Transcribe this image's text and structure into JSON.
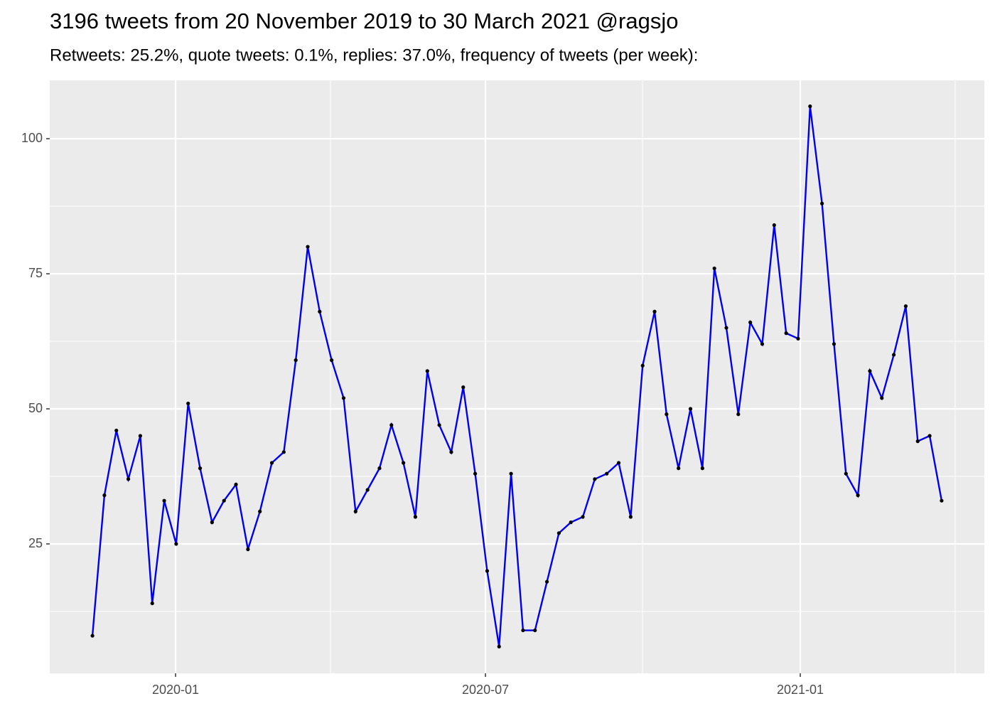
{
  "chart_data": {
    "type": "line",
    "title": "3196 tweets from 20 November 2019 to 30 March 2021 @ragsjo",
    "subtitle": "Retweets: 25.2%, quote tweets: 0.1%, replies: 37.0%, frequency of tweets (per week):",
    "categories": [
      null,
      null,
      null,
      null,
      null,
      null,
      null,
      null,
      null,
      null,
      null,
      null,
      null,
      null,
      null,
      null,
      null,
      null,
      null,
      null,
      null,
      null,
      null,
      null,
      null,
      null,
      null,
      null,
      null,
      null,
      null,
      null,
      null,
      null,
      null,
      null,
      null,
      null,
      null,
      null,
      null,
      null,
      null,
      null,
      null,
      null,
      null,
      null,
      null,
      null,
      null,
      null,
      null,
      null,
      null,
      null,
      null,
      null,
      null,
      null,
      null,
      null,
      null,
      null,
      null,
      null,
      null,
      null,
      null,
      null,
      null,
      null
    ],
    "series": [
      {
        "color": "#0000ee",
        "point_color": "#000000",
        "values": [
          8,
          34,
          46,
          37,
          45,
          14,
          33,
          25,
          51,
          39,
          29,
          33,
          36,
          24,
          31,
          40,
          42,
          59,
          80,
          68,
          59,
          52,
          31,
          35,
          39,
          47,
          40,
          30,
          57,
          47,
          42,
          54,
          38,
          20,
          6,
          38,
          9,
          9,
          18,
          27,
          29,
          30,
          37,
          38,
          40,
          30,
          58,
          68,
          49,
          39,
          50,
          39,
          76,
          65,
          49,
          66,
          62,
          84,
          64,
          63,
          106,
          88,
          62,
          38,
          34,
          57,
          52,
          60,
          69,
          44,
          45,
          33
        ]
      }
    ],
    "xlim": [
      -3.57,
      74.57
    ],
    "xticks": [
      {
        "value": 6.95,
        "label": "2020-01"
      },
      {
        "value": 32.86,
        "label": "2020-07"
      },
      {
        "value": 59.18,
        "label": "2021-01"
      }
    ],
    "x_minor_grid": [
      19.9,
      45.99,
      72.13
    ],
    "ylim": [
      1.05,
      110.8
    ],
    "yticks": [
      25,
      50,
      75,
      100
    ],
    "y_minor_grid": [
      12.5,
      37.5,
      62.5,
      87.5
    ],
    "grid": true,
    "background": "#ebebeb"
  }
}
